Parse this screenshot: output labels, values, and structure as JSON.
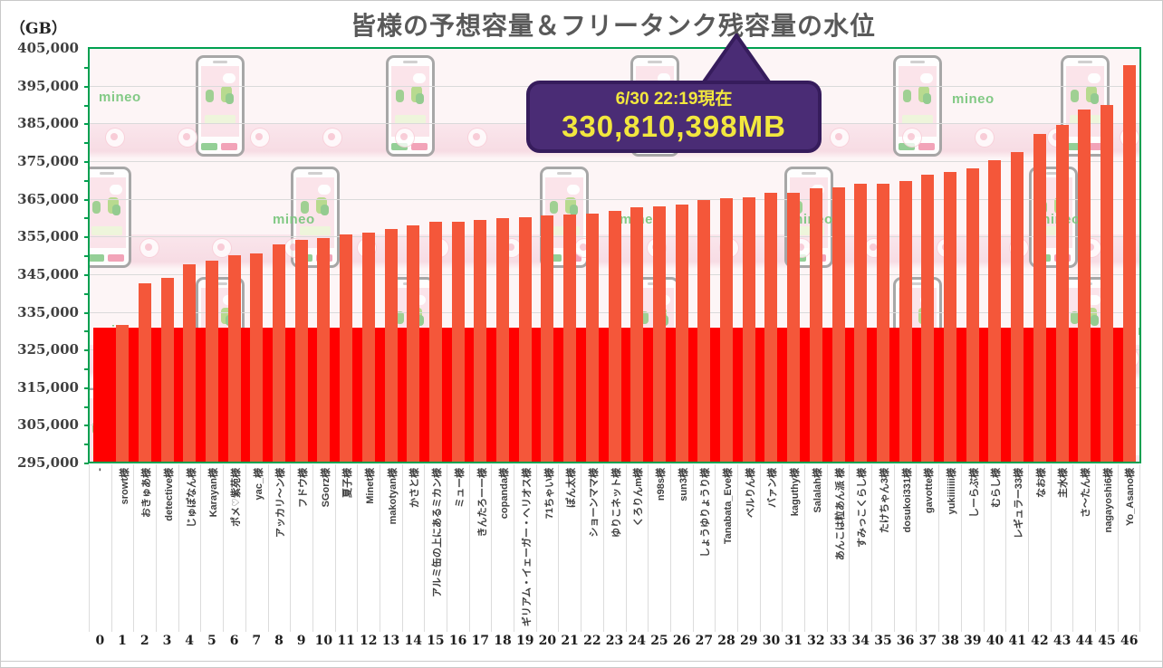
{
  "title": "皆様の予想容量＆フリータンク残容量の水位",
  "y_axis_unit": "（GB）",
  "callout": {
    "line1": "6/30 22:19現在",
    "line2": "330,810,398MB"
  },
  "background": {
    "watermark": "mineo"
  },
  "chart_data": {
    "type": "bar",
    "title": "皆様の予想容量＆フリータンク残容量の水位",
    "ylabel": "（GB）",
    "ylim": [
      295000,
      405000
    ],
    "ytick_step": 10000,
    "ytick_minor_step": 5000,
    "grid": true,
    "legend": "none",
    "timestamp": "6/30 22:19現在",
    "water_level_label": "330,810,398MB",
    "water_level_gb": 330810,
    "categories": [
      "-",
      "srowt様",
      "おきゅあ様",
      "detective様",
      "じゅぽなん様",
      "Karayan様",
      "ポメ♡紫苑様",
      "yac_様",
      "アッカリ〜ン様",
      "フドウ様",
      "SGorz様",
      "夏子様",
      "Minet様",
      "makotyan様",
      "かさと様",
      "アルミ缶の上にあるミカン様",
      "ミュー様",
      "きんたろーー様",
      "copanda様",
      "ギリアム・イェーガー・ヘリオス様",
      "71ちゃい様",
      "ぽん太様",
      "ショーンママ様",
      "ゆりこネット様",
      "くろりんm様",
      "n98s様",
      "sun3様",
      "しょうゆりょうり様",
      "Tanabata_Eve様",
      "ベルりん様",
      "バァン様",
      "kaguthy様",
      "Salalah様",
      "あんこは粒あん派 様",
      "すみっこくらし様",
      "たけちゃん3様",
      "dosukoi331様",
      "gavotte様",
      "yukiiiiiii様",
      "しーらぶ様",
      "むらし様",
      "レギュラー33様",
      "なお様",
      "主水様",
      "さ〜たん様",
      "nagayoshi6様",
      "Yo_Asano様"
    ],
    "values": [
      330810,
      331500,
      342500,
      344000,
      347500,
      348500,
      350000,
      350500,
      353000,
      354000,
      354500,
      355500,
      356000,
      357000,
      358000,
      358800,
      359000,
      359300,
      359800,
      360000,
      360500,
      360800,
      361000,
      361800,
      362800,
      363000,
      363500,
      364600,
      365200,
      365500,
      366500,
      366700,
      367800,
      368000,
      368900,
      369100,
      369700,
      371300,
      372100,
      373000,
      375300,
      377500,
      382100,
      384500,
      388700,
      389900,
      400400
    ],
    "colors": {
      "bar": "#f4573a",
      "water": "#ff0000",
      "plot_border": "#00a050",
      "gridline": "#dadada",
      "callout_bg": "#4a2c75",
      "callout_border": "#361c5c",
      "callout_text": "#f2e73e",
      "title_text": "#595959",
      "mineo_green": "#7cc77f"
    }
  }
}
